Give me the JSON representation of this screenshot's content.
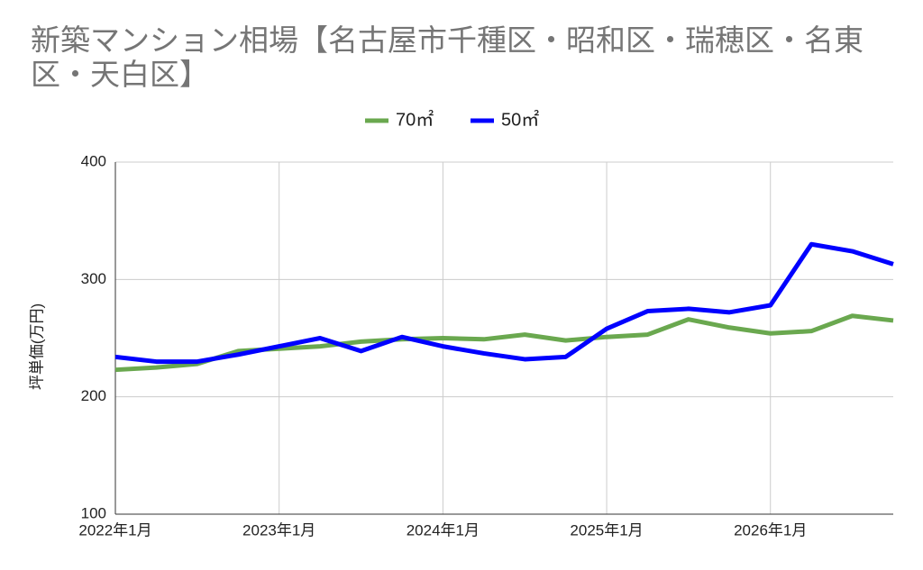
{
  "chart_data": {
    "type": "line",
    "title": "新築マンション相場【名古屋市千種区・昭和区・瑞穂区・名東区・天白区】",
    "y_label": "坪単価(万円)",
    "categories": [
      "2022年1月",
      null,
      null,
      null,
      "2023年1月",
      null,
      null,
      null,
      "2024年1月",
      null,
      null,
      null,
      "2025年1月",
      null,
      null,
      null,
      "2026年1月",
      null,
      null,
      null
    ],
    "series": [
      {
        "name": "70㎡",
        "color": "#6aa84f",
        "values": [
          223,
          225,
          228,
          239,
          241,
          243,
          247,
          249,
          250,
          249,
          253,
          248,
          251,
          253,
          266,
          259,
          254,
          256,
          269,
          265
        ]
      },
      {
        "name": "50㎡",
        "color": "#0000ff",
        "values": [
          234,
          230,
          230,
          236,
          243,
          250,
          239,
          251,
          243,
          237,
          232,
          234,
          258,
          273,
          275,
          272,
          278,
          330,
          324,
          313
        ]
      }
    ],
    "ylim": [
      100,
      400
    ],
    "yticks": [
      100,
      200,
      300,
      400
    ],
    "grid": true
  }
}
